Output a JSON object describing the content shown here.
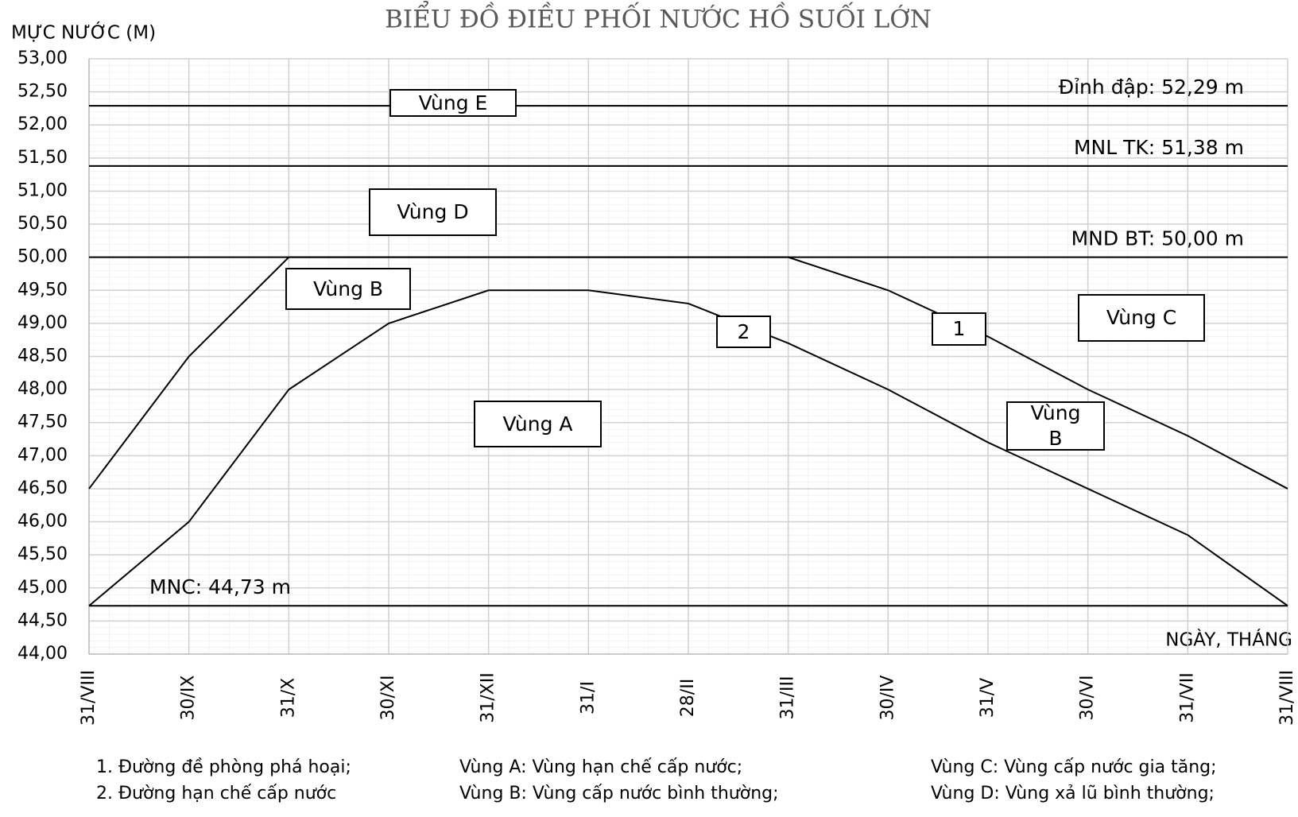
{
  "chart_data": {
    "type": "line",
    "title": "BIỂU ĐỒ ĐIỀU PHỐI NƯỚC HỒ SUỐI LỚN",
    "y_label": "MỰC NƯỚC (M)",
    "x_label": "NGÀY, THÁNG",
    "categories": [
      "31/VIII",
      "30/IX",
      "31/X",
      "30/XI",
      "31/XII",
      "31/I",
      "28/II",
      "31/III",
      "30/IV",
      "31/V",
      "30/VI",
      "31/VII",
      "31/VIII"
    ],
    "series": [
      {
        "name": "1",
        "color": "#000000",
        "values": [
          46.5,
          48.5,
          50.0,
          50.0,
          50.0,
          50.0,
          50.0,
          50.0,
          49.5,
          48.8,
          48.0,
          47.3,
          46.5
        ]
      },
      {
        "name": "2",
        "color": "#000000",
        "values": [
          44.73,
          46.0,
          48.0,
          49.0,
          49.5,
          49.5,
          49.3,
          48.7,
          48.0,
          47.2,
          46.5,
          45.8,
          44.73
        ]
      }
    ],
    "hlines": [
      {
        "value": 52.29,
        "label": "Đỉnh đập: 52,29 m"
      },
      {
        "value": 51.38,
        "label": "MNL TK: 51,38 m"
      },
      {
        "value": 50.0,
        "label": "MND BT: 50,00 m"
      },
      {
        "value": 44.73,
        "label": "MNC: 44,73 m"
      }
    ],
    "zones": [
      "Vùng E",
      "Vùng D",
      "Vùng B",
      "Vùng C",
      "Vùng A",
      "Vùng B"
    ],
    "notes": [
      "1. Đường đề phòng phá hoại;",
      "2. Đường hạn chế cấp nước",
      "Vùng A: Vùng hạn chế cấp nước;",
      "Vùng B: Vùng cấp nước bình thường;",
      "Vùng C: Vùng cấp nước gia tăng;",
      "Vùng D: Vùng xả lũ bình thường;"
    ],
    "ylim": [
      44,
      53
    ],
    "yticks": [
      {
        "value": 44,
        "label": "44,00"
      },
      {
        "value": 44.5,
        "label": "44,50"
      },
      {
        "value": 45,
        "label": "45,00"
      },
      {
        "value": 45.5,
        "label": "45,50"
      },
      {
        "value": 46,
        "label": "46,00"
      },
      {
        "value": 46.5,
        "label": "46,50"
      },
      {
        "value": 47,
        "label": "47,00"
      },
      {
        "value": 47.5,
        "label": "47,50"
      },
      {
        "value": 48,
        "label": "48,00"
      },
      {
        "value": 48.5,
        "label": "48,50"
      },
      {
        "value": 49,
        "label": "49,00"
      },
      {
        "value": 49.5,
        "label": "49,50"
      },
      {
        "value": 50,
        "label": "50,00"
      },
      {
        "value": 50.5,
        "label": "50,50"
      },
      {
        "value": 51,
        "label": "51,00"
      },
      {
        "value": 51.5,
        "label": "51,50"
      },
      {
        "value": 52,
        "label": "52,00"
      },
      {
        "value": 52.5,
        "label": "52,50"
      },
      {
        "value": 53,
        "label": "53,00"
      }
    ],
    "grid": true
  }
}
